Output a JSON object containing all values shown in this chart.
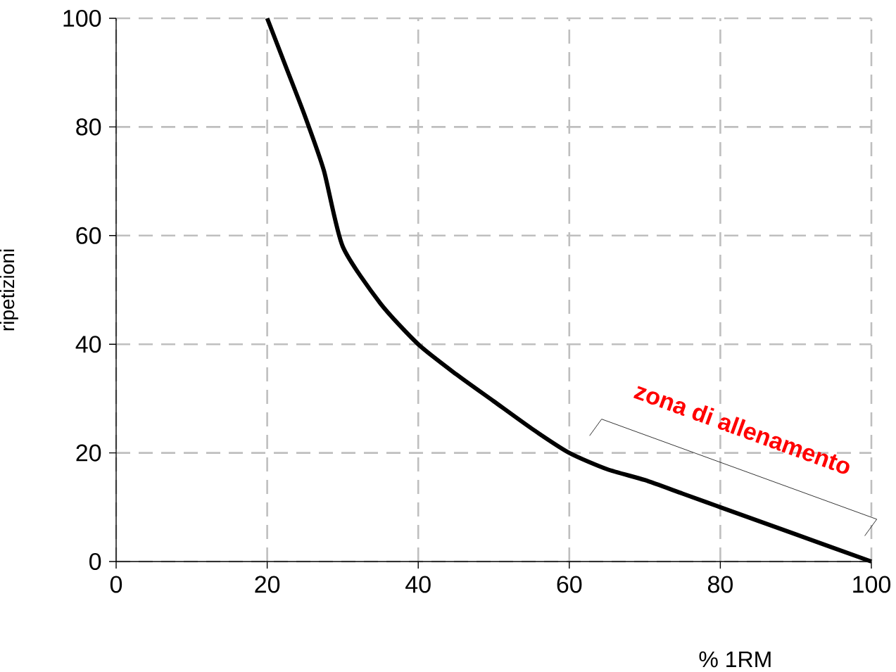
{
  "chart_data": {
    "type": "line",
    "xlabel": "% 1RM",
    "ylabel": "ripetizioni",
    "x": [
      20,
      22.5,
      25,
      27.5,
      30,
      35,
      40,
      45,
      50,
      55,
      60,
      65,
      70,
      75,
      80,
      90,
      100
    ],
    "series": [
      {
        "color": "#000000",
        "values": [
          100,
          91,
          82,
          72,
          58,
          47.5,
          40,
          34.5,
          29.5,
          24.5,
          20,
          17,
          15,
          12.5,
          10,
          5,
          0
        ]
      }
    ],
    "xlim": [
      0,
      100
    ],
    "ylim": [
      0,
      100
    ],
    "xticks": [
      0,
      20,
      40,
      60,
      80,
      100
    ],
    "yticks": [
      0,
      20,
      40,
      60,
      80,
      100
    ],
    "grid": true,
    "marker": "none",
    "line_style": "solid",
    "legend": false,
    "annotations": [
      "zona di allenamento"
    ]
  }
}
